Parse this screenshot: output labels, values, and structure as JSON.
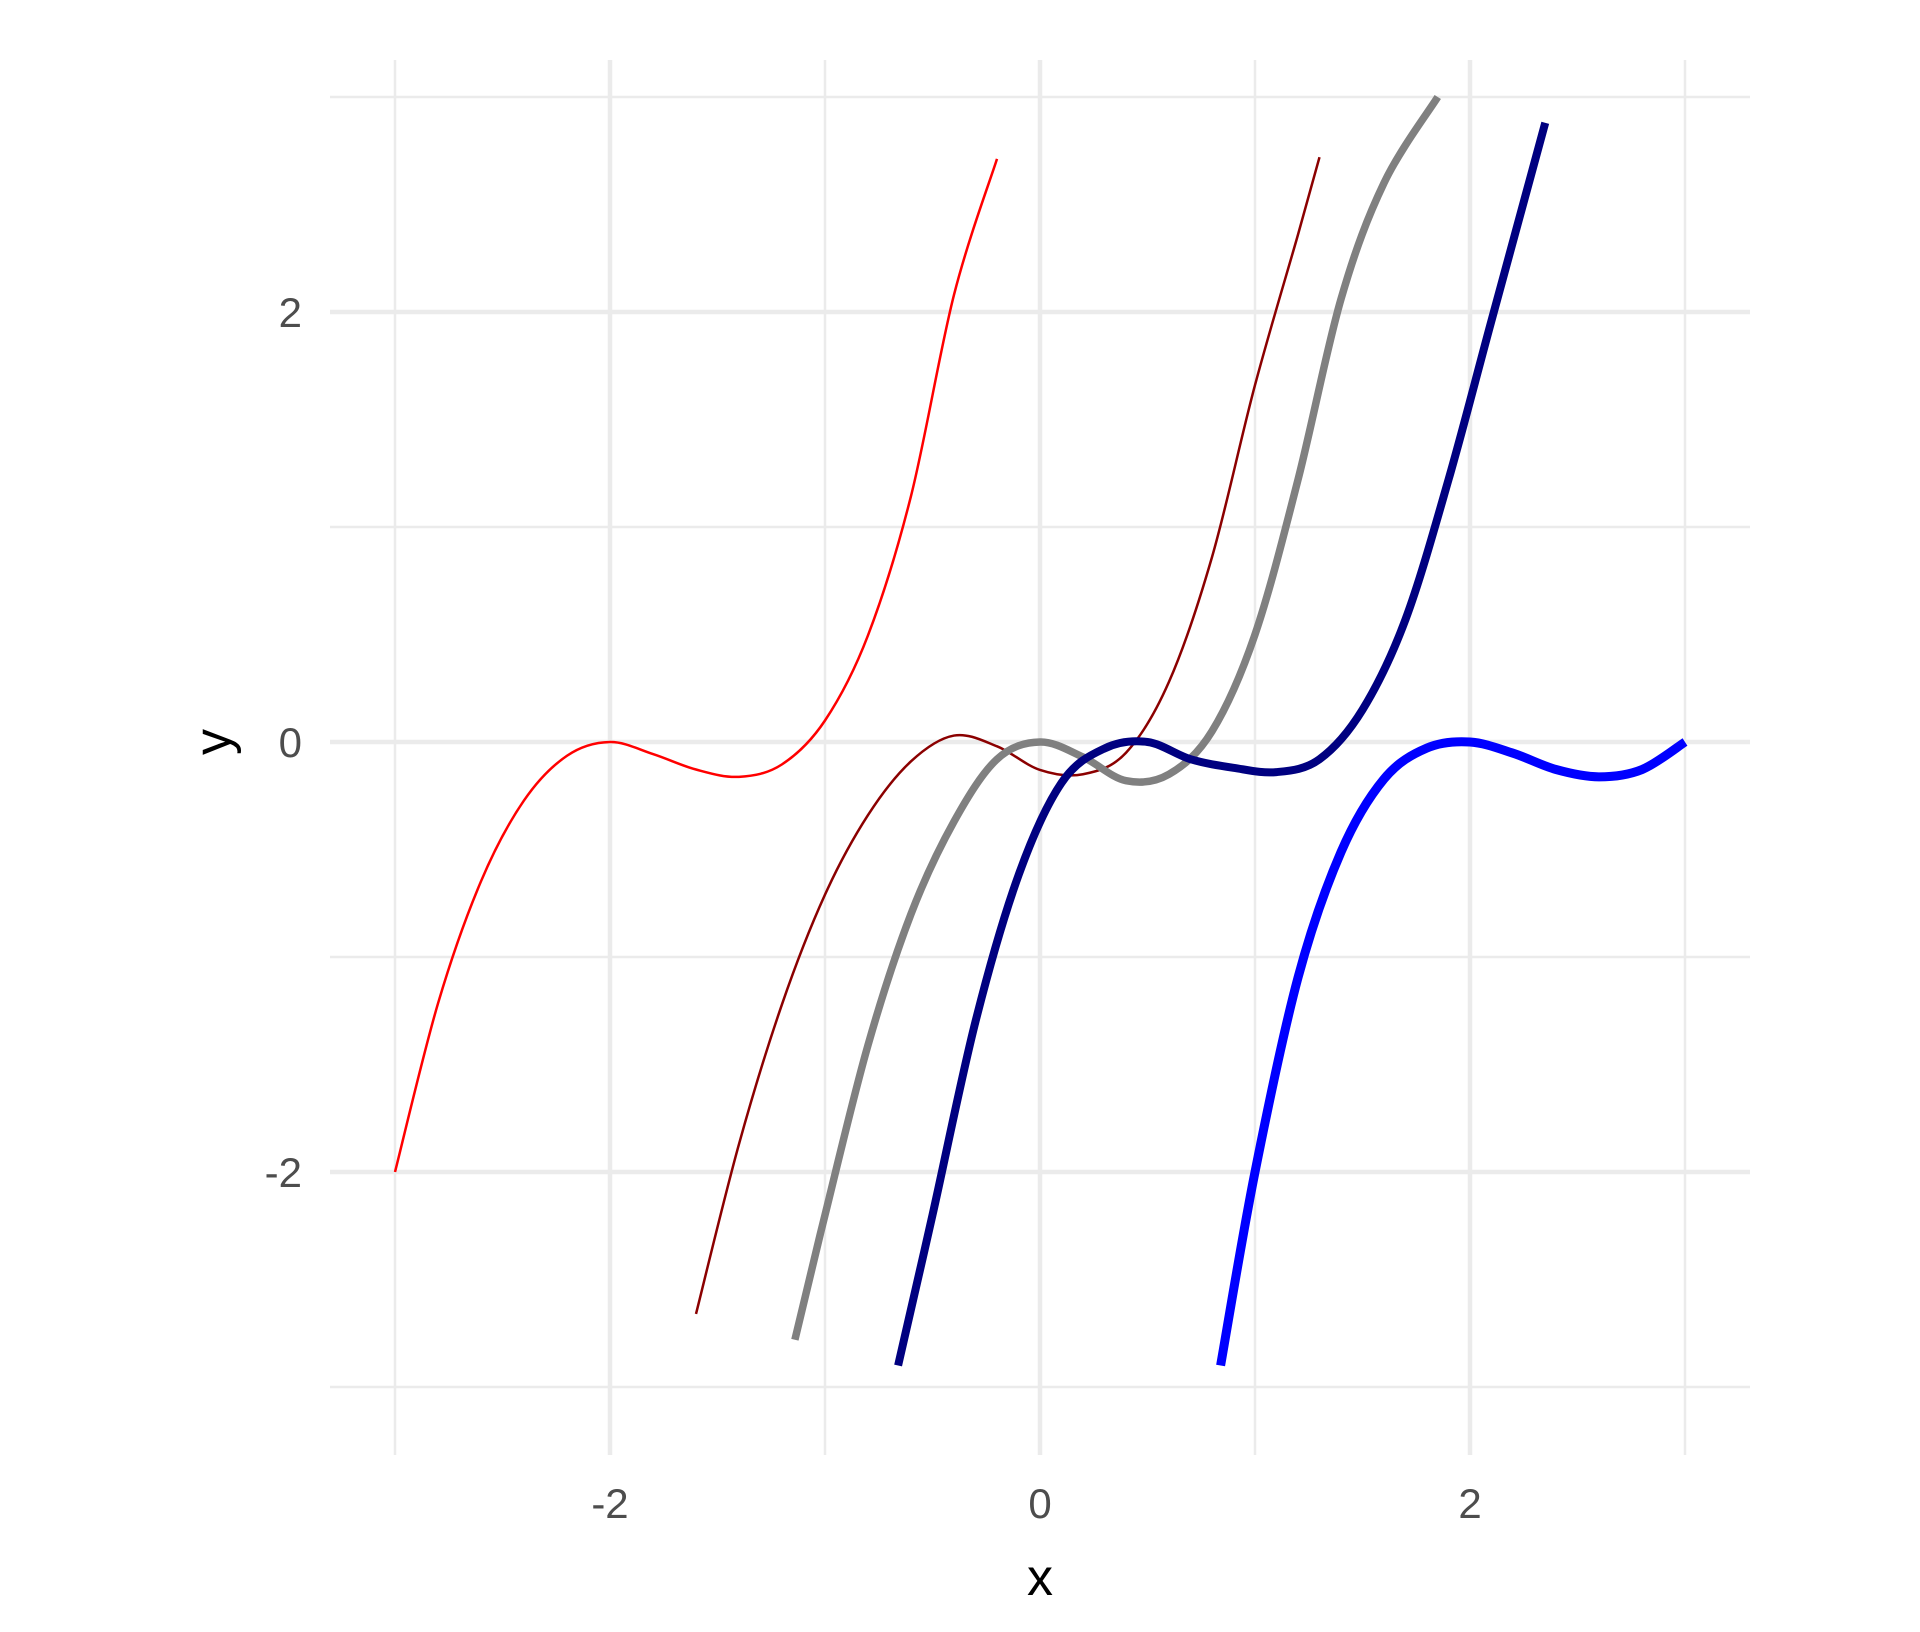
{
  "chart_data": {
    "type": "line",
    "xlabel": "x",
    "ylabel": "y",
    "xlim": [
      -3.0,
      3.0
    ],
    "ylim": [
      -3.0,
      3.0
    ],
    "x_ticks": [
      -2,
      0,
      2
    ],
    "x_tick_labels": [
      "-2",
      "0",
      "2"
    ],
    "x_minor_ticks": [
      -3,
      -1,
      1,
      3
    ],
    "y_ticks": [
      -2,
      0,
      2
    ],
    "y_tick_labels": [
      "-2",
      "0",
      "2"
    ],
    "y_minor_ticks": [
      -3,
      -1,
      1,
      3
    ],
    "grid": true,
    "legend": "none",
    "series": [
      {
        "color": "#ff0000",
        "x": [
          -3.0,
          -2.8,
          -2.6,
          -2.4,
          -2.2,
          -2.0,
          -1.8,
          -1.6,
          -1.4,
          -1.2,
          -1.0,
          -0.8,
          -0.6,
          -0.4,
          -0.2
        ],
        "y": [
          -2.0,
          -1.216,
          -0.648,
          -0.272,
          -0.064,
          0.0,
          -0.056,
          -0.128,
          -0.162,
          -0.104,
          0.1,
          0.496,
          1.144,
          2.08,
          2.712
        ]
      },
      {
        "color": "#8b0000",
        "x": [
          -1.6,
          -1.4,
          -1.2,
          -1.0,
          -0.8,
          -0.6,
          -0.4,
          -0.2,
          0.0,
          0.2,
          0.4,
          0.6,
          0.8,
          1.0,
          1.2,
          1.3
        ],
        "y": [
          -2.66,
          -1.87,
          -1.22,
          -0.71,
          -0.34,
          -0.09,
          0.03,
          -0.02,
          -0.13,
          -0.15,
          -0.05,
          0.28,
          0.86,
          1.66,
          2.36,
          2.72
        ]
      },
      {
        "color": "#808080",
        "x": [
          -1.14,
          -1.0,
          -0.8,
          -0.6,
          -0.4,
          -0.2,
          0.0,
          0.2,
          0.4,
          0.6,
          0.8,
          1.0,
          1.2,
          1.4,
          1.6,
          1.85
        ],
        "y": [
          -2.78,
          -2.2,
          -1.41,
          -0.8,
          -0.37,
          -0.08,
          0.0,
          -0.07,
          -0.18,
          -0.15,
          0.05,
          0.5,
          1.22,
          2.06,
          2.6,
          3.0
        ]
      },
      {
        "color": "#000080",
        "x": [
          -0.66,
          -0.5,
          -0.3,
          -0.1,
          0.1,
          0.3,
          0.5,
          0.7,
          0.9,
          1.1,
          1.3,
          1.5,
          1.7,
          1.9,
          2.1,
          2.35
        ],
        "y": [
          -2.9,
          -2.2,
          -1.3,
          -0.62,
          -0.19,
          -0.03,
          0.0,
          -0.08,
          -0.12,
          -0.14,
          -0.08,
          0.15,
          0.57,
          1.22,
          1.96,
          2.88
        ]
      },
      {
        "color": "#0000ff",
        "x": [
          0.84,
          1.0,
          1.2,
          1.4,
          1.6,
          1.8,
          2.0,
          2.2,
          2.4,
          2.6,
          2.8,
          3.0
        ],
        "y": [
          -2.9,
          -2.0,
          -1.096,
          -0.512,
          -0.172,
          -0.028,
          0.0,
          -0.052,
          -0.128,
          -0.162,
          -0.128,
          0.0
        ]
      }
    ]
  }
}
